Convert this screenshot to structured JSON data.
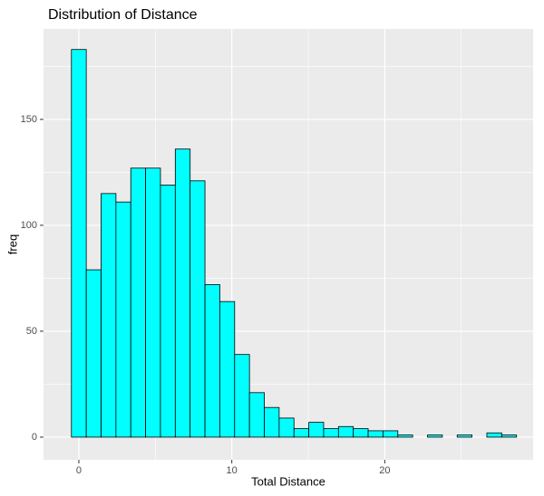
{
  "chart_data": {
    "type": "histogram",
    "title": "Distribution of Distance",
    "x_label": "Total Distance",
    "y_label": "freq",
    "bins": [
      -0.485,
      0.485,
      1.455,
      2.425,
      3.395,
      4.365,
      5.335,
      6.305,
      7.275,
      8.245,
      9.215,
      10.185,
      11.155,
      12.125,
      13.095,
      14.065,
      15.035,
      16.005,
      16.975,
      17.945,
      18.915,
      19.885,
      20.855,
      21.825,
      22.795,
      23.765,
      24.735,
      25.705,
      26.675,
      27.645,
      28.615
    ],
    "values": [
      183,
      79,
      115,
      111,
      127,
      127,
      119,
      136,
      121,
      72,
      64,
      39,
      21,
      14,
      9,
      4,
      7,
      4,
      5,
      4,
      3,
      3,
      1,
      0,
      1,
      0,
      1,
      0,
      2,
      1
    ],
    "color": "#00ffff",
    "edge_color": "#000000",
    "xlim": [
      -2.31,
      29.7
    ],
    "ylim": [
      -10.7,
      192.7
    ],
    "xticks": [
      0,
      10,
      20
    ],
    "yticks": [
      0,
      50,
      100,
      150
    ],
    "grid": true
  }
}
